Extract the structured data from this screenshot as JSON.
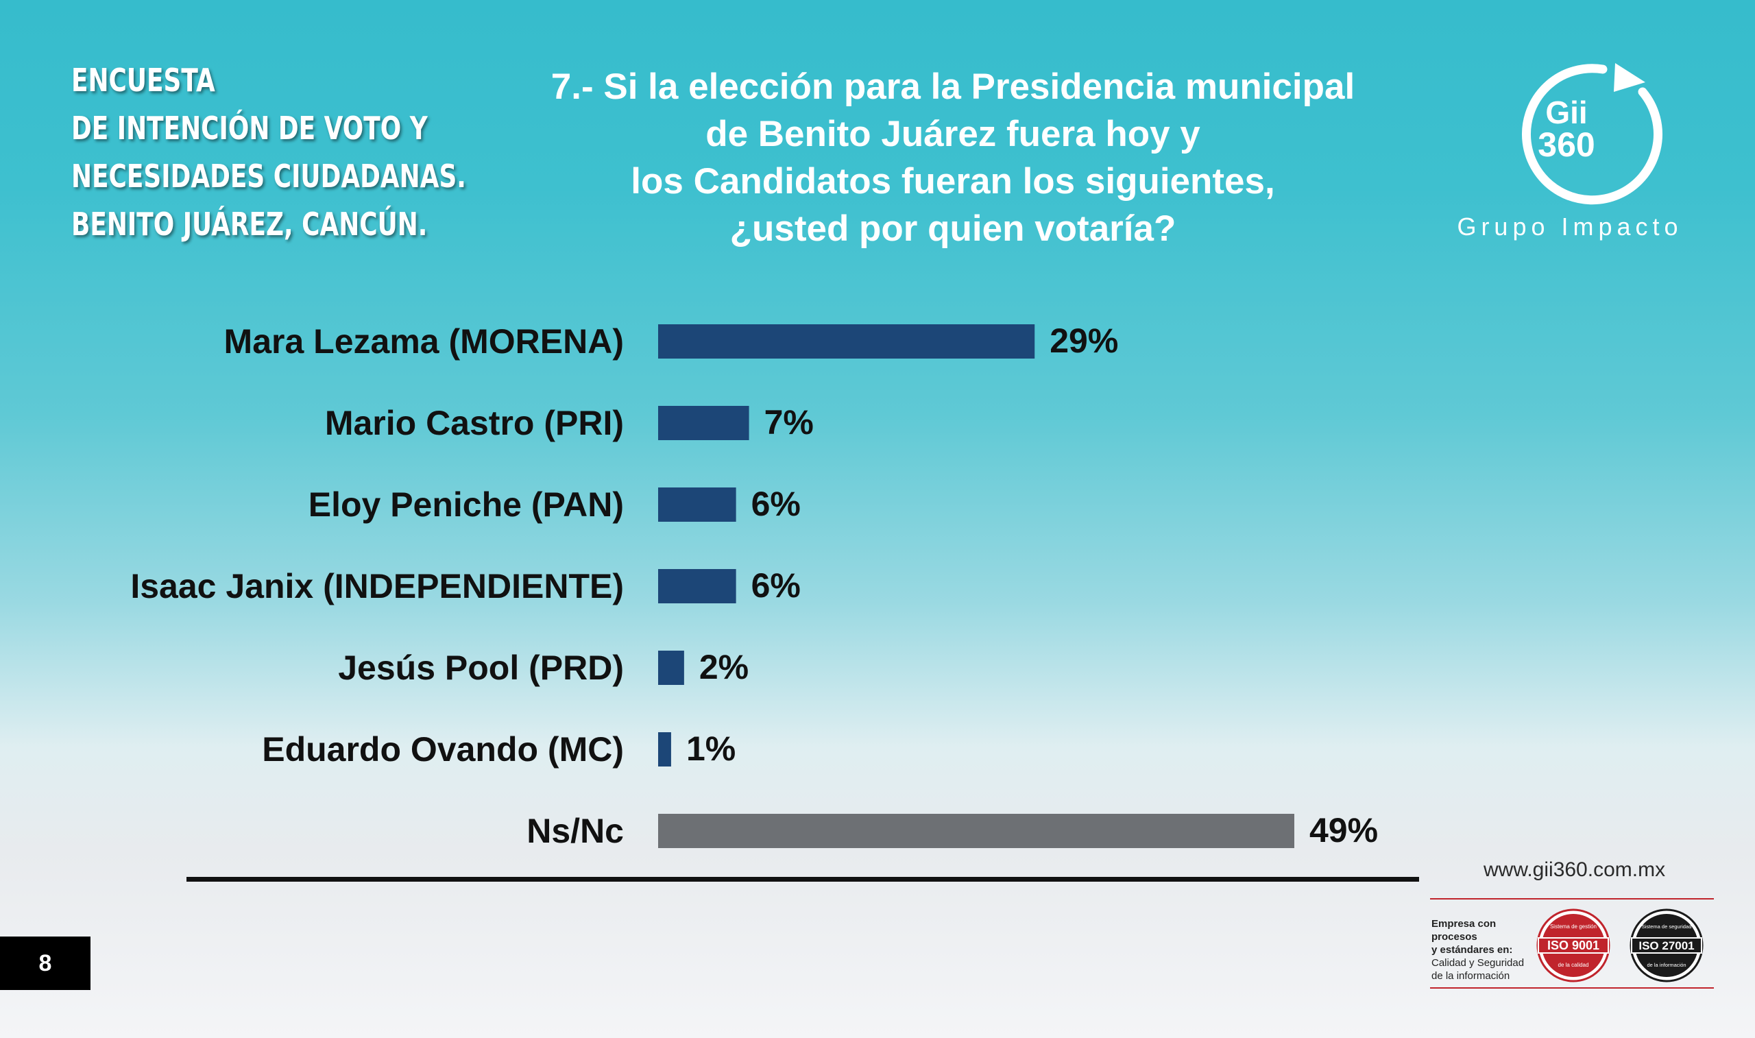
{
  "survey_title": {
    "lines": [
      "ENCUESTA",
      "DE INTENCIÓN DE VOTO Y",
      "NECESIDADES CIUDADANAS.",
      "BENITO JUÁREZ, CANCÚN."
    ]
  },
  "question": {
    "lines": [
      "7.- Si la elección para la Presidencia municipal",
      "de Benito Juárez fuera hoy y",
      "los Candidatos fueran los siguientes,",
      "¿usted por quien votaría?"
    ]
  },
  "logo": {
    "mark_line1": "Gii",
    "mark_line2": "360",
    "caption": "Grupo Impacto"
  },
  "chart_data": {
    "type": "bar",
    "orientation": "horizontal",
    "title": "7.- Si la elección para la Presidencia municipal de Benito Juárez fuera hoy y los Candidatos fueran los siguientes, ¿usted por quien votaría?",
    "categories": [
      "Mara Lezama (MORENA)",
      "Mario Castro (PRI)",
      "Eloy Peniche (PAN)",
      "Isaac Janix (INDEPENDIENTE)",
      "Jesús Pool (PRD)",
      "Eduardo Ovando (MC)",
      "Ns/Nc"
    ],
    "values": [
      29,
      7,
      6,
      6,
      2,
      1,
      49
    ],
    "value_labels": [
      "29%",
      "7%",
      "6%",
      "6%",
      "2%",
      "1%",
      "49%"
    ],
    "unit": "%",
    "bar_colors": [
      "#1c4677",
      "#1c4677",
      "#1c4677",
      "#1c4677",
      "#1c4677",
      "#1c4677",
      "#6d7074"
    ],
    "xlim": [
      0,
      49
    ],
    "grid": false,
    "legend": false
  },
  "footer": {
    "website": "www.gii360.com.mx",
    "cert_lines": [
      "Empresa con procesos",
      "y estándares en:",
      "Calidad y Seguridad",
      "de la información"
    ],
    "iso_9001": {
      "label": "ISO 9001",
      "top_text": "Sistema de gestión",
      "bottom_text": "de la calidad",
      "color": "#c0242c"
    },
    "iso_27001": {
      "label": "ISO 27001",
      "top_text": "Sistema de seguridad",
      "bottom_text": "de la información",
      "color": "#1a1a1a"
    }
  },
  "page_number": "8"
}
